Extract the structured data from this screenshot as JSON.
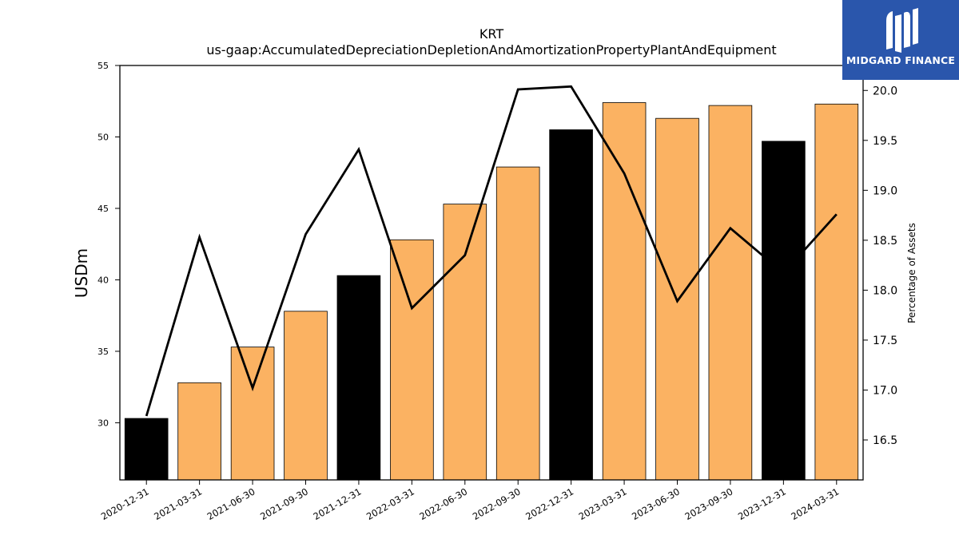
{
  "chart_data": {
    "type": "bar",
    "title": "KRT",
    "subtitle": "us-gaap:AccumulatedDepreciationDepletionAndAmortizationPropertyPlantAndEquipment",
    "ylabel": "USDm",
    "y2label": "Percentage of Assets",
    "categories": [
      "2020-12-31",
      "2021-03-31",
      "2021-06-30",
      "2021-09-30",
      "2021-12-31",
      "2022-03-31",
      "2022-06-30",
      "2022-09-30",
      "2022-12-31",
      "2023-03-31",
      "2023-06-30",
      "2023-09-30",
      "2023-12-31",
      "2024-03-31"
    ],
    "series": [
      {
        "type": "bar",
        "values": [
          30.3,
          32.8,
          35.3,
          37.8,
          40.3,
          42.8,
          45.3,
          47.9,
          50.5,
          52.4,
          51.3,
          52.2,
          49.7,
          52.3
        ],
        "colors": [
          "#000000",
          "#fbb262",
          "#fbb262",
          "#fbb262",
          "#000000",
          "#fbb262",
          "#fbb262",
          "#fbb262",
          "#000000",
          "#fbb262",
          "#fbb262",
          "#fbb262",
          "#000000",
          "#fbb262"
        ]
      },
      {
        "type": "line",
        "axis": "right",
        "color": "#000000",
        "values": [
          16.74,
          18.53,
          17.02,
          18.56,
          19.41,
          17.82,
          18.35,
          20.01,
          20.04,
          19.17,
          17.89,
          18.62,
          18.17,
          18.76
        ]
      }
    ],
    "ylim": [
      26,
      55
    ],
    "yticks": [
      30,
      35,
      40,
      45,
      50,
      55
    ],
    "y2lim": [
      16.1,
      20.25
    ],
    "y2ticks": [
      16.5,
      17.0,
      17.5,
      18.0,
      18.5,
      19.0,
      19.5,
      20.0
    ],
    "grid": false
  },
  "logo": {
    "text": "MIDGARD FINANCE"
  }
}
